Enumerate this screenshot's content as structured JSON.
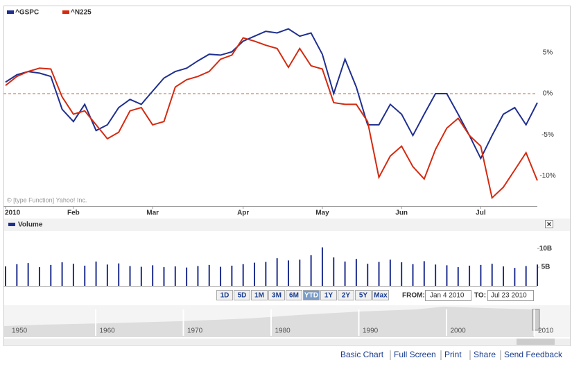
{
  "chart_data": [
    {
      "type": "line",
      "categories": [
        "2010",
        null,
        null,
        null,
        null,
        null,
        "Feb",
        null,
        null,
        null,
        null,
        null,
        null,
        "Mar",
        null,
        null,
        null,
        null,
        null,
        null,
        null,
        "Apr",
        null,
        null,
        null,
        null,
        null,
        null,
        "May",
        null,
        null,
        null,
        null,
        null,
        null,
        "Jun",
        null,
        null,
        null,
        null,
        null,
        null,
        "Jul",
        null,
        null,
        null,
        null,
        null
      ],
      "series": [
        {
          "name": "^GSPC",
          "color": "#1f2f8f",
          "values": [
            1.4,
            2.3,
            2.7,
            2.5,
            2.1,
            -1.9,
            -3.4,
            -1.3,
            -4.5,
            -3.8,
            -1.7,
            -0.7,
            -1.3,
            0.3,
            1.9,
            2.7,
            3.1,
            4.0,
            4.8,
            4.7,
            5.1,
            6.4,
            7.0,
            7.6,
            7.4,
            7.9,
            7.0,
            7.4,
            4.8,
            0,
            4.2,
            0.8,
            -3.8,
            -3.8,
            -1.3,
            -2.5,
            -5.1,
            -2.5,
            0,
            0,
            -2.5,
            -5.1,
            -7.9,
            -5.1,
            -2.5,
            -1.7,
            -3.8,
            -1.1
          ]
        },
        {
          "name": "^N225",
          "color": "#d42a10",
          "values": [
            1.0,
            2.1,
            2.7,
            3.1,
            3.0,
            -0.4,
            -2.5,
            -2.1,
            -3.8,
            -5.5,
            -4.7,
            -2.1,
            -1.7,
            -3.8,
            -3.4,
            0.8,
            1.7,
            2.1,
            2.7,
            4.2,
            4.7,
            6.8,
            6.4,
            5.9,
            5.5,
            3.2,
            5.5,
            3.4,
            3.0,
            -1.1,
            -1.3,
            -1.3,
            -3.4,
            -10.2,
            -7.6,
            -6.4,
            -8.9,
            -10.4,
            -6.8,
            -4.2,
            -3.0,
            -5.1,
            -6.4,
            -12.7,
            -11.4,
            -9.3,
            -7.2,
            -10.6
          ]
        }
      ],
      "ylim": [
        -13.7,
        10.4
      ],
      "yticks": [
        {
          "value": 5,
          "label": "5%"
        },
        {
          "value": 0,
          "label": "0%"
        },
        {
          "value": -5,
          "label": "-5%"
        },
        {
          "value": -10,
          "label": "-10%"
        }
      ],
      "grid": false,
      "watermark": "© [type Function] Yahoo! Inc."
    },
    {
      "type": "bar",
      "series": [
        {
          "name": "Volume",
          "color": "#1f2f8f",
          "values": [
            5.2,
            5.8,
            6.1,
            5.0,
            5.6,
            6.3,
            5.9,
            5.4,
            6.5,
            5.7,
            6.0,
            5.3,
            5.1,
            5.5,
            5.0,
            5.2,
            4.9,
            5.3,
            5.6,
            5.1,
            5.4,
            5.8,
            6.2,
            6.4,
            7.4,
            6.8,
            7.0,
            8.2,
            10.3,
            7.6,
            6.5,
            7.2,
            5.9,
            6.4,
            7.0,
            6.3,
            5.8,
            6.6,
            5.7,
            5.5,
            5.0,
            5.4,
            5.6,
            5.9,
            5.2,
            4.8,
            5.3,
            5.7
          ]
        }
      ],
      "ylim": [
        0,
        14.3
      ],
      "yticks": [
        {
          "value": 10,
          "label": "10B"
        },
        {
          "value": 5,
          "label": "5B"
        }
      ]
    }
  ],
  "range_buttons": [
    "1D",
    "5D",
    "1M",
    "3M",
    "6M",
    "YTD",
    "1Y",
    "2Y",
    "5Y",
    "Max"
  ],
  "active_range": 5,
  "date_range": {
    "from_label": "FROM:",
    "from": "Jan 4 2010",
    "to_label": "TO:",
    "to": "Jul 23 2010"
  },
  "navigator": {
    "years": [
      1950,
      1960,
      1970,
      1980,
      1990,
      2000,
      2010
    ]
  },
  "footer_links": [
    "Basic Chart",
    "Full Screen",
    "Print",
    "Share",
    "Send Feedback"
  ]
}
